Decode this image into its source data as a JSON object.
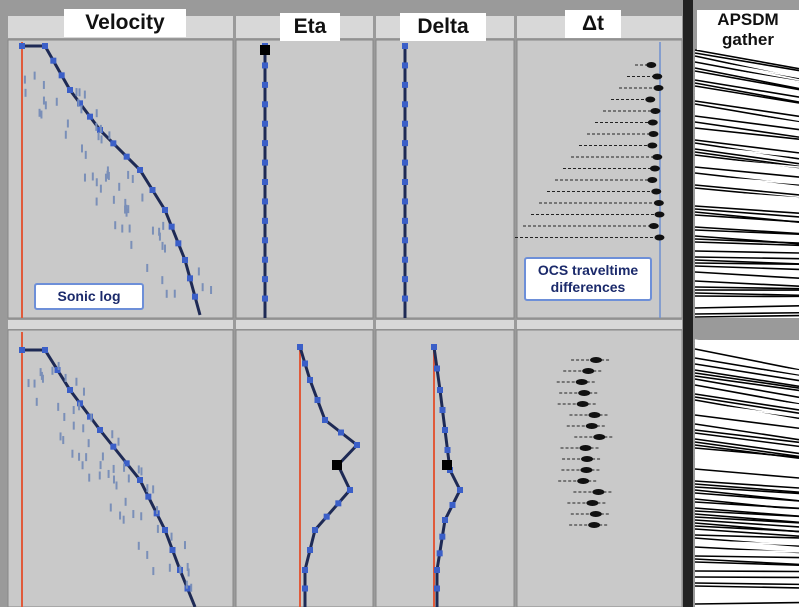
{
  "panels": {
    "velocity": {
      "title": "Velocity",
      "callout": "Sonic log"
    },
    "eta": {
      "title": "Eta"
    },
    "delta": {
      "title": "Delta"
    },
    "dt": {
      "title": "Δt",
      "callout": "OCS traveltime differences"
    },
    "gather": {
      "title": "APSDM gather"
    }
  }
}
